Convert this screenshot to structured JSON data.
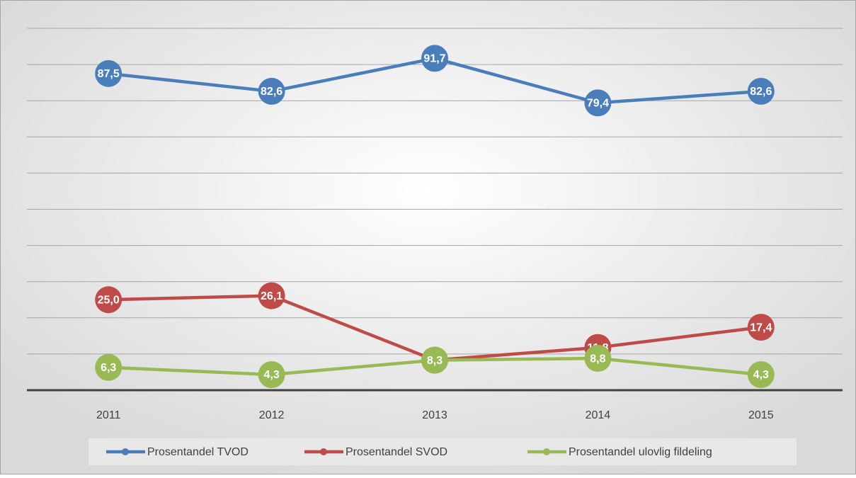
{
  "chart_data": {
    "type": "line",
    "categories": [
      "2011",
      "2012",
      "2013",
      "2014",
      "2015"
    ],
    "series": [
      {
        "name": "Prosentandel TVOD",
        "color": "#4a7ebb",
        "values": [
          87.5,
          82.6,
          91.7,
          79.4,
          82.6
        ],
        "value_labels": [
          "87,5",
          "82,6",
          "91,7",
          "79,4",
          "82,6"
        ]
      },
      {
        "name": "Prosentandel SVOD",
        "color": "#be4b48",
        "values": [
          25.0,
          26.1,
          8.3,
          11.8,
          17.4
        ],
        "value_labels": [
          "25,0",
          "26,1",
          null,
          "11,8",
          "17,4"
        ]
      },
      {
        "name": "Prosentandel ulovlig fildeling",
        "color": "#98b954",
        "values": [
          6.3,
          4.3,
          8.3,
          8.8,
          4.3
        ],
        "value_labels": [
          "6,3",
          "4,3",
          "8,3",
          "8,8",
          "4,3"
        ]
      }
    ],
    "ylim": [
      0,
      100
    ],
    "yticks": [
      0,
      10,
      20,
      30,
      40,
      50,
      60,
      70,
      80,
      90,
      100
    ],
    "grid": true
  }
}
